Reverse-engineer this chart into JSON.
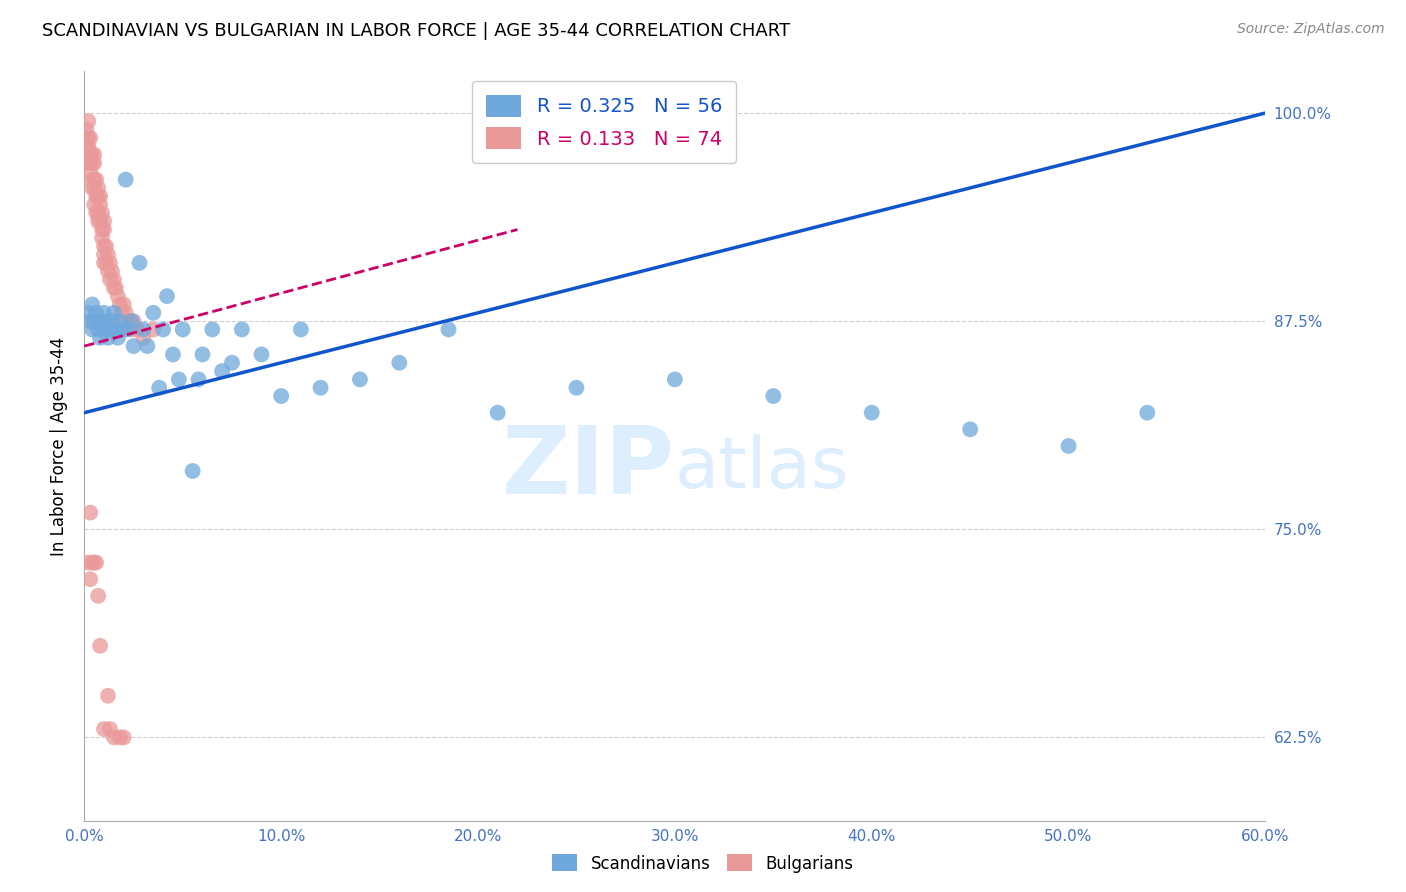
{
  "title": "SCANDINAVIAN VS BULGARIAN IN LABOR FORCE | AGE 35-44 CORRELATION CHART",
  "source_text": "Source: ZipAtlas.com",
  "ylabel": "In Labor Force | Age 35-44",
  "xlim": [
    0.0,
    0.6
  ],
  "ylim": [
    0.575,
    1.025
  ],
  "xticks": [
    0.0,
    0.1,
    0.2,
    0.3,
    0.4,
    0.5,
    0.6
  ],
  "xticklabels": [
    "0.0%",
    "10.0%",
    "20.0%",
    "30.0%",
    "40.0%",
    "50.0%",
    "60.0%"
  ],
  "ytick_positions": [
    0.625,
    0.75,
    0.875,
    1.0
  ],
  "ytick_labels": [
    "62.5%",
    "75.0%",
    "87.5%",
    "100.0%"
  ],
  "blue_R": 0.325,
  "blue_N": 56,
  "pink_R": 0.133,
  "pink_N": 74,
  "blue_color": "#6fa8dc",
  "pink_color": "#ea9999",
  "blue_line_color": "#1155cc",
  "pink_line_color": "#cc0066",
  "axis_color": "#4472c4",
  "grid_color": "#d0d0d0",
  "watermark_color": "#ddeeff",
  "legend_label_blue": "Scandinavians",
  "legend_label_pink": "Bulgarians",
  "blue_scatter_x": [
    0.002,
    0.003,
    0.004,
    0.004,
    0.005,
    0.006,
    0.007,
    0.008,
    0.009,
    0.01,
    0.01,
    0.011,
    0.012,
    0.013,
    0.014,
    0.015,
    0.016,
    0.017,
    0.018,
    0.02,
    0.021,
    0.022,
    0.024,
    0.025,
    0.028,
    0.03,
    0.032,
    0.035,
    0.038,
    0.04,
    0.042,
    0.045,
    0.048,
    0.05,
    0.055,
    0.058,
    0.06,
    0.065,
    0.07,
    0.075,
    0.08,
    0.09,
    0.1,
    0.11,
    0.12,
    0.14,
    0.16,
    0.185,
    0.21,
    0.25,
    0.3,
    0.35,
    0.4,
    0.45,
    0.5,
    0.54
  ],
  "blue_scatter_y": [
    0.88,
    0.875,
    0.87,
    0.885,
    0.875,
    0.88,
    0.87,
    0.865,
    0.875,
    0.87,
    0.88,
    0.875,
    0.865,
    0.87,
    0.875,
    0.88,
    0.87,
    0.865,
    0.875,
    0.87,
    0.96,
    0.87,
    0.875,
    0.86,
    0.91,
    0.87,
    0.86,
    0.88,
    0.835,
    0.87,
    0.89,
    0.855,
    0.84,
    0.87,
    0.785,
    0.84,
    0.855,
    0.87,
    0.845,
    0.85,
    0.87,
    0.855,
    0.83,
    0.87,
    0.835,
    0.84,
    0.85,
    0.87,
    0.82,
    0.835,
    0.84,
    0.83,
    0.82,
    0.81,
    0.8,
    0.82
  ],
  "pink_scatter_x": [
    0.001,
    0.001,
    0.001,
    0.002,
    0.002,
    0.002,
    0.002,
    0.002,
    0.003,
    0.003,
    0.003,
    0.003,
    0.004,
    0.004,
    0.004,
    0.004,
    0.005,
    0.005,
    0.005,
    0.005,
    0.005,
    0.006,
    0.006,
    0.006,
    0.007,
    0.007,
    0.007,
    0.007,
    0.008,
    0.008,
    0.008,
    0.009,
    0.009,
    0.009,
    0.01,
    0.01,
    0.01,
    0.01,
    0.01,
    0.011,
    0.011,
    0.012,
    0.012,
    0.013,
    0.013,
    0.014,
    0.015,
    0.015,
    0.016,
    0.017,
    0.018,
    0.019,
    0.02,
    0.021,
    0.022,
    0.024,
    0.025,
    0.027,
    0.03,
    0.035,
    0.002,
    0.003,
    0.003,
    0.004,
    0.005,
    0.006,
    0.007,
    0.008,
    0.01,
    0.012,
    0.013,
    0.015,
    0.018,
    0.02
  ],
  "pink_scatter_y": [
    0.99,
    0.985,
    0.98,
    0.985,
    0.98,
    0.975,
    0.995,
    0.97,
    0.985,
    0.975,
    0.97,
    0.965,
    0.975,
    0.97,
    0.96,
    0.955,
    0.975,
    0.97,
    0.96,
    0.955,
    0.945,
    0.96,
    0.95,
    0.94,
    0.955,
    0.95,
    0.94,
    0.935,
    0.95,
    0.945,
    0.935,
    0.94,
    0.93,
    0.925,
    0.935,
    0.93,
    0.92,
    0.915,
    0.91,
    0.92,
    0.91,
    0.915,
    0.905,
    0.91,
    0.9,
    0.905,
    0.9,
    0.895,
    0.895,
    0.89,
    0.885,
    0.88,
    0.885,
    0.88,
    0.875,
    0.87,
    0.875,
    0.87,
    0.865,
    0.87,
    0.73,
    0.76,
    0.72,
    0.73,
    0.73,
    0.73,
    0.71,
    0.68,
    0.63,
    0.65,
    0.63,
    0.625,
    0.625,
    0.625
  ],
  "blue_trend_x": [
    0.0,
    0.6
  ],
  "blue_trend_y": [
    0.82,
    1.0
  ],
  "pink_trend_x": [
    0.0,
    0.22
  ],
  "pink_trend_y": [
    0.86,
    0.93
  ]
}
